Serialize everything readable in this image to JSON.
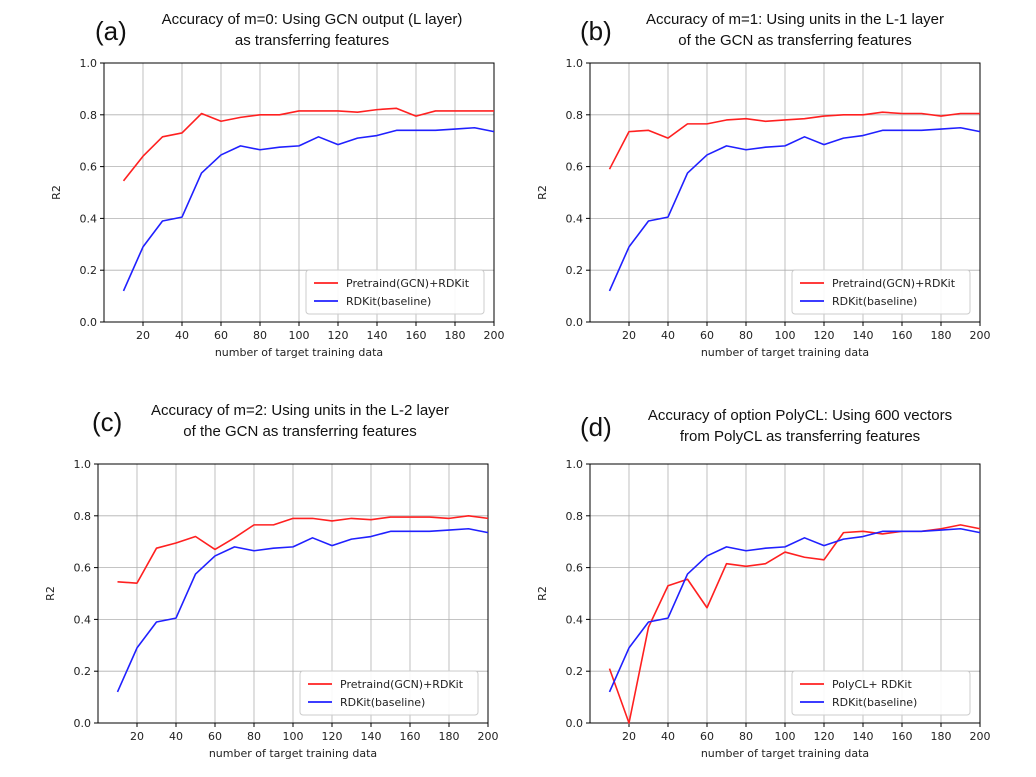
{
  "chart_data": [
    {
      "type": "line",
      "panel_label": "(a)",
      "title_lines": [
        "Accuracy of m=0: Using GCN output (L layer)",
        "as transferring features"
      ],
      "xlabel": "number of target training data",
      "ylabel": "R2",
      "xlim": [
        0,
        200
      ],
      "ylim": [
        0,
        1.0
      ],
      "xticks": [
        "20",
        "40",
        "60",
        "80",
        "100",
        "120",
        "140",
        "160",
        "180",
        "200"
      ],
      "yticks": [
        "0.0",
        "0.2",
        "0.4",
        "0.6",
        "0.8",
        "1.0"
      ],
      "grid": true,
      "legend_position": "lower-right",
      "x": [
        10,
        20,
        30,
        40,
        50,
        60,
        70,
        80,
        90,
        100,
        110,
        120,
        130,
        140,
        150,
        160,
        170,
        180,
        190,
        200
      ],
      "series": [
        {
          "name": "Pretraind(GCN)+RDKit",
          "color": "#ff2020",
          "values": [
            0.545,
            0.64,
            0.715,
            0.73,
            0.805,
            0.775,
            0.79,
            0.8,
            0.8,
            0.815,
            0.815,
            0.815,
            0.81,
            0.82,
            0.825,
            0.795,
            0.815,
            0.815,
            0.815,
            0.815
          ]
        },
        {
          "name": "RDKit(baseline)",
          "color": "#2020ff",
          "values": [
            0.12,
            0.29,
            0.39,
            0.405,
            0.575,
            0.645,
            0.68,
            0.665,
            0.675,
            0.68,
            0.715,
            0.685,
            0.71,
            0.72,
            0.74,
            0.74,
            0.74,
            0.745,
            0.75,
            0.735
          ]
        }
      ]
    },
    {
      "type": "line",
      "panel_label": "(b)",
      "title_lines": [
        "Accuracy of m=1: Using units in the L-1 layer",
        "of the GCN as transferring features"
      ],
      "xlabel": "number of target training data",
      "ylabel": "R2",
      "xlim": [
        0,
        200
      ],
      "ylim": [
        0,
        1.0
      ],
      "xticks": [
        "20",
        "40",
        "60",
        "80",
        "100",
        "120",
        "140",
        "160",
        "180",
        "200"
      ],
      "yticks": [
        "0.0",
        "0.2",
        "0.4",
        "0.6",
        "0.8",
        "1.0"
      ],
      "grid": true,
      "legend_position": "lower-right",
      "x": [
        10,
        20,
        30,
        40,
        50,
        60,
        70,
        80,
        90,
        100,
        110,
        120,
        130,
        140,
        150,
        160,
        170,
        180,
        190,
        200
      ],
      "series": [
        {
          "name": "Pretraind(GCN)+RDKit",
          "color": "#ff2020",
          "values": [
            0.59,
            0.735,
            0.74,
            0.71,
            0.765,
            0.765,
            0.78,
            0.785,
            0.775,
            0.78,
            0.785,
            0.795,
            0.8,
            0.8,
            0.81,
            0.805,
            0.805,
            0.795,
            0.805,
            0.805
          ]
        },
        {
          "name": "RDKit(baseline)",
          "color": "#2020ff",
          "values": [
            0.12,
            0.29,
            0.39,
            0.405,
            0.575,
            0.645,
            0.68,
            0.665,
            0.675,
            0.68,
            0.715,
            0.685,
            0.71,
            0.72,
            0.74,
            0.74,
            0.74,
            0.745,
            0.75,
            0.735
          ]
        }
      ]
    },
    {
      "type": "line",
      "panel_label": "(c)",
      "title_lines": [
        "Accuracy of m=2: Using units in the L-2 layer",
        "of the GCN as transferring features"
      ],
      "xlabel": "number of target training data",
      "ylabel": "R2",
      "xlim": [
        0,
        200
      ],
      "ylim": [
        0,
        1.0
      ],
      "xticks": [
        "20",
        "40",
        "60",
        "80",
        "100",
        "120",
        "140",
        "160",
        "180",
        "200"
      ],
      "yticks": [
        "0.0",
        "0.2",
        "0.4",
        "0.6",
        "0.8",
        "1.0"
      ],
      "grid": true,
      "legend_position": "lower-right",
      "x": [
        10,
        20,
        30,
        40,
        50,
        60,
        70,
        80,
        90,
        100,
        110,
        120,
        130,
        140,
        150,
        160,
        170,
        180,
        190,
        200
      ],
      "series": [
        {
          "name": "Pretraind(GCN)+RDKit",
          "color": "#ff2020",
          "values": [
            0.545,
            0.54,
            0.675,
            0.695,
            0.72,
            0.67,
            0.715,
            0.765,
            0.765,
            0.79,
            0.79,
            0.78,
            0.79,
            0.785,
            0.795,
            0.795,
            0.795,
            0.79,
            0.8,
            0.79
          ]
        },
        {
          "name": "RDKit(baseline)",
          "color": "#2020ff",
          "values": [
            0.12,
            0.29,
            0.39,
            0.405,
            0.575,
            0.645,
            0.68,
            0.665,
            0.675,
            0.68,
            0.715,
            0.685,
            0.71,
            0.72,
            0.74,
            0.74,
            0.74,
            0.745,
            0.75,
            0.735
          ]
        }
      ]
    },
    {
      "type": "line",
      "panel_label": "(d)",
      "title_lines": [
        "Accuracy of option PolyCL: Using 600 vectors",
        "from PolyCL as transferring features"
      ],
      "xlabel": "number of target training data",
      "ylabel": "R2",
      "xlim": [
        0,
        200
      ],
      "ylim": [
        0,
        1.0
      ],
      "xticks": [
        "20",
        "40",
        "60",
        "80",
        "100",
        "120",
        "140",
        "160",
        "180",
        "200"
      ],
      "yticks": [
        "0.0",
        "0.2",
        "0.4",
        "0.6",
        "0.8",
        "1.0"
      ],
      "grid": true,
      "legend_position": "lower-right",
      "x": [
        10,
        20,
        30,
        40,
        50,
        60,
        70,
        80,
        90,
        100,
        110,
        120,
        130,
        140,
        150,
        160,
        170,
        180,
        190,
        200
      ],
      "series": [
        {
          "name": "PolyCL+ RDKit",
          "color": "#ff2020",
          "values": [
            0.21,
            0.0,
            0.37,
            0.53,
            0.555,
            0.445,
            0.615,
            0.605,
            0.615,
            0.66,
            0.64,
            0.63,
            0.735,
            0.74,
            0.73,
            0.74,
            0.74,
            0.75,
            0.765,
            0.75
          ]
        },
        {
          "name": "RDKit(baseline)",
          "color": "#2020ff",
          "values": [
            0.12,
            0.29,
            0.39,
            0.405,
            0.575,
            0.645,
            0.68,
            0.665,
            0.675,
            0.68,
            0.715,
            0.685,
            0.71,
            0.72,
            0.74,
            0.74,
            0.74,
            0.745,
            0.75,
            0.735
          ]
        }
      ]
    }
  ]
}
